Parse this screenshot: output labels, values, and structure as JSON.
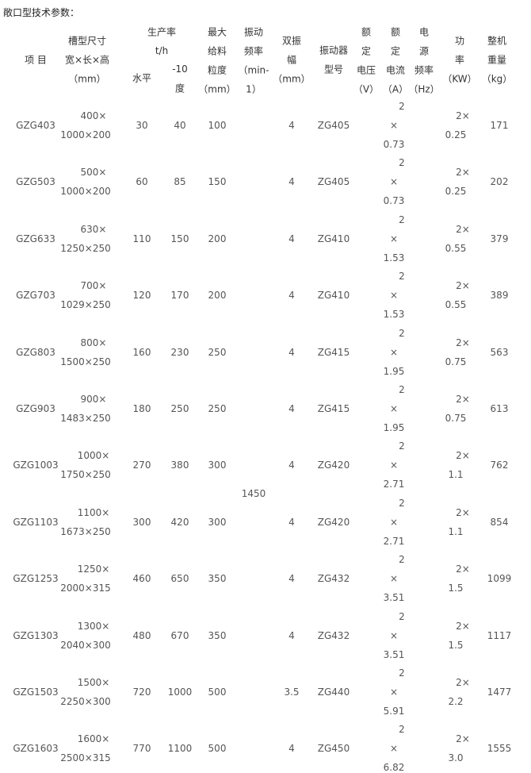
{
  "title": "敞口型技术参数：",
  "headers": {
    "item": [
      "项 目"
    ],
    "size": [
      "槽型尺寸",
      "宽×长×高",
      "（mm）"
    ],
    "rate": [
      "生产率",
      "t/h"
    ],
    "flat": [
      "水平"
    ],
    "slope": [
      "-10",
      "度"
    ],
    "feed": [
      "最大",
      "给料",
      "粒度",
      "（mm）"
    ],
    "freq": [
      "振动",
      "频率",
      "（min-",
      "1）"
    ],
    "amp": [
      "双振",
      "幅",
      "（mm）"
    ],
    "model": [
      "振动器",
      "型号"
    ],
    "volt": [
      "额",
      "定",
      "电压",
      "（V）"
    ],
    "curr": [
      "额",
      "定",
      "电流",
      "（A）"
    ],
    "hz": [
      "电",
      "源",
      "频率",
      "（Hz）"
    ],
    "power": [
      "功",
      "率",
      "（KW）"
    ],
    "weight": [
      "整机",
      "重量",
      "（kg）"
    ]
  },
  "vibration_frequency": "1450",
  "rows": [
    {
      "item": "GZG403",
      "size": [
        "400×",
        "1000×200"
      ],
      "flat": "30",
      "slope": "40",
      "feed": "100",
      "amp": "4",
      "model": "ZG405",
      "curr": [
        "2",
        "×",
        "0.73"
      ],
      "power": [
        "2×",
        "0.25"
      ],
      "weight": "171"
    },
    {
      "item": "GZG503",
      "size": [
        "500×",
        "1000×200"
      ],
      "flat": "60",
      "slope": "85",
      "feed": "150",
      "amp": "4",
      "model": "ZG405",
      "curr": [
        "2",
        "×",
        "0.73"
      ],
      "power": [
        "2×",
        "0.25"
      ],
      "weight": "202"
    },
    {
      "item": "GZG633",
      "size": [
        "630×",
        "1250×250"
      ],
      "flat": "110",
      "slope": "150",
      "feed": "200",
      "amp": "4",
      "model": "ZG410",
      "curr": [
        "2",
        "×",
        "1.53"
      ],
      "power": [
        "2×",
        "0.55"
      ],
      "weight": "379"
    },
    {
      "item": "GZG703",
      "size": [
        "700×",
        "1029×250"
      ],
      "flat": "120",
      "slope": "170",
      "feed": "200",
      "amp": "4",
      "model": "ZG410",
      "curr": [
        "2",
        "×",
        "1.53"
      ],
      "power": [
        "2×",
        "0.55"
      ],
      "weight": "389"
    },
    {
      "item": "GZG803",
      "size": [
        "800×",
        "1500×250"
      ],
      "flat": "160",
      "slope": "230",
      "feed": "250",
      "amp": "4",
      "model": "ZG415",
      "curr": [
        "2",
        "×",
        "1.95"
      ],
      "power": [
        "2×",
        "0.75"
      ],
      "weight": "563"
    },
    {
      "item": "GZG903",
      "size": [
        "900×",
        "1483×250"
      ],
      "flat": "180",
      "slope": "250",
      "feed": "250",
      "amp": "4",
      "model": "ZG415",
      "curr": [
        "2",
        "×",
        "1.95"
      ],
      "power": [
        "2×",
        "0.75"
      ],
      "weight": "613"
    },
    {
      "item": "GZG1003",
      "size": [
        "1000×",
        "1750×250"
      ],
      "flat": "270",
      "slope": "380",
      "feed": "300",
      "amp": "4",
      "model": "ZG420",
      "curr": [
        "2",
        "×",
        "2.71"
      ],
      "power": [
        "2×",
        "1.1"
      ],
      "weight": "762"
    },
    {
      "item": "GZG1103",
      "size": [
        "1100×",
        "1673×250"
      ],
      "flat": "300",
      "slope": "420",
      "feed": "300",
      "amp": "4",
      "model": "ZG420",
      "curr": [
        "2",
        "×",
        "2.71"
      ],
      "power": [
        "2×",
        "1.1"
      ],
      "weight": "854"
    },
    {
      "item": "GZG1253",
      "size": [
        "1250×",
        "2000×315"
      ],
      "flat": "460",
      "slope": "650",
      "feed": "350",
      "amp": "4",
      "model": "ZG432",
      "curr": [
        "2",
        "×",
        "3.51"
      ],
      "power": [
        "2×",
        "1.5"
      ],
      "weight": "1099"
    },
    {
      "item": "GZG1303",
      "size": [
        "1300×",
        "2040×300"
      ],
      "flat": "480",
      "slope": "670",
      "feed": "350",
      "amp": "4",
      "model": "ZG432",
      "curr": [
        "2",
        "×",
        "3.51"
      ],
      "power": [
        "2×",
        "1.5"
      ],
      "weight": "1117"
    },
    {
      "item": "GZG1503",
      "size": [
        "1500×",
        "2250×300"
      ],
      "flat": "720",
      "slope": "1000",
      "feed": "500",
      "amp": "3.5",
      "model": "ZG440",
      "curr": [
        "2",
        "×",
        "5.91"
      ],
      "power": [
        "2×",
        "2.2"
      ],
      "weight": "1477"
    },
    {
      "item": "GZG1603",
      "size": [
        "1600×",
        "2500×315"
      ],
      "flat": "770",
      "slope": "1100",
      "feed": "500",
      "amp": "4",
      "model": "ZG450",
      "curr": [
        "2",
        "×",
        "6.82"
      ],
      "power": [
        "2×",
        "3.0"
      ],
      "weight": "1555"
    }
  ]
}
